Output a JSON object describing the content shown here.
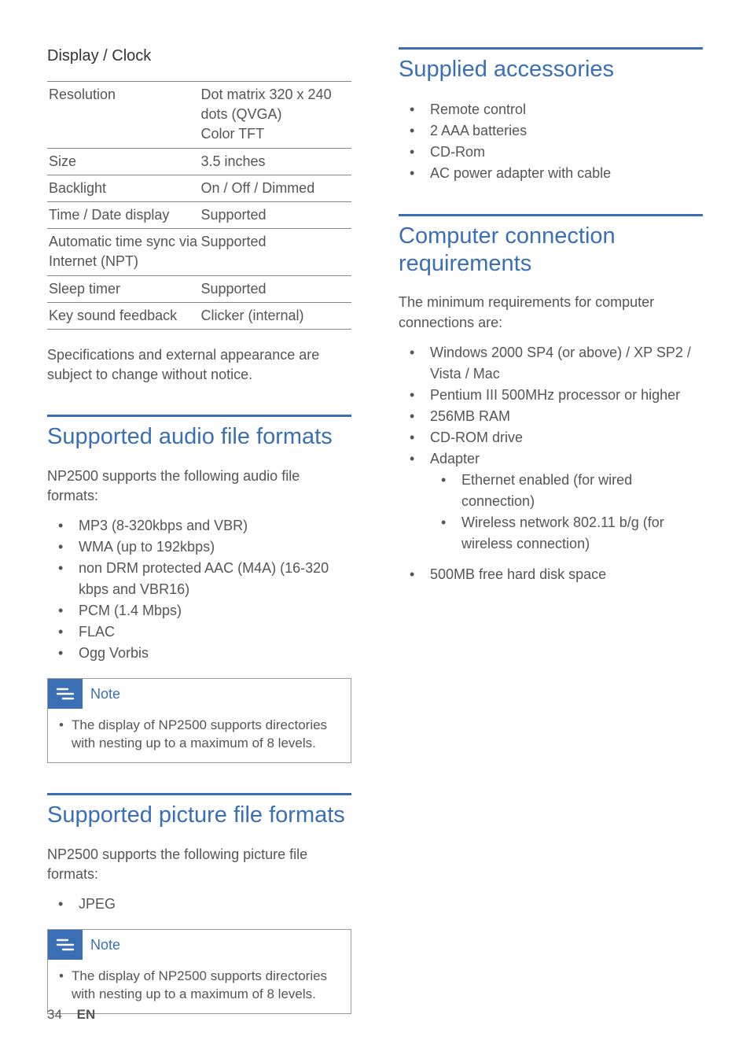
{
  "colors": {
    "accent": "#3a6fb5",
    "text": "#555555",
    "heading": "#333333",
    "rule": "#888888",
    "background": "#ffffff"
  },
  "left": {
    "display_clock": {
      "heading": "Display / Clock",
      "rows": [
        {
          "k": "Resolution",
          "v": "Dot matrix 320 x 240 dots (QVGA)\nColor TFT"
        },
        {
          "k": "Size",
          "v": "3.5 inches"
        },
        {
          "k": "Backlight",
          "v": "On / Off / Dimmed"
        },
        {
          "k": "Time / Date display",
          "v": "Supported"
        },
        {
          "k": "Automatic time sync via Internet (NPT)",
          "v": "Supported"
        },
        {
          "k": "Sleep timer",
          "v": "Supported"
        },
        {
          "k": "Key sound feedback",
          "v": "Clicker (internal)"
        }
      ],
      "disclaimer": "Specifications and external appearance are subject to change without notice."
    },
    "audio": {
      "title": "Supported audio file formats",
      "intro": "NP2500 supports the following audio file formats:",
      "items": [
        "MP3 (8-320kbps and VBR)",
        "WMA (up to 192kbps)",
        "non DRM protected AAC (M4A) (16-320 kbps and VBR16)",
        "PCM (1.4 Mbps)",
        "FLAC",
        "Ogg Vorbis"
      ],
      "note_label": "Note",
      "note_text": "The display of NP2500 supports directories with nesting up to a maximum of 8 levels."
    },
    "picture": {
      "title": "Supported picture file formats",
      "intro": "NP2500 supports the following picture file formats:",
      "items": [
        "JPEG"
      ],
      "note_label": "Note",
      "note_text": "The display of NP2500 supports directories with nesting up to a maximum of 8 levels."
    }
  },
  "right": {
    "accessories": {
      "title": "Supplied accessories",
      "items": [
        "Remote control",
        "2 AAA batteries",
        "CD-Rom",
        "AC power adapter with cable"
      ]
    },
    "computer": {
      "title": "Computer connection requirements",
      "intro": "The minimum requirements for computer connections are:",
      "items": [
        {
          "t": "Windows 2000 SP4 (or above) / XP SP2 / Vista / Mac"
        },
        {
          "t": "Pentium III 500MHz processor or higher"
        },
        {
          "t": "256MB RAM"
        },
        {
          "t": "CD-ROM drive"
        },
        {
          "t": "Adapter",
          "sub": [
            "Ethernet enabled (for wired connection)",
            "Wireless network 802.11 b/g (for wireless connection)"
          ]
        },
        {
          "t": "500MB free hard disk space"
        }
      ]
    }
  },
  "footer": {
    "page": "34",
    "lang": "EN"
  }
}
